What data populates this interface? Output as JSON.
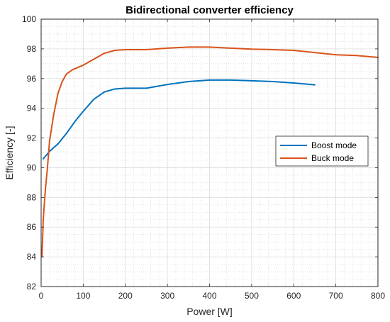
{
  "chart_data": {
    "type": "line",
    "title": "Bidirectional converter efficiency",
    "xlabel": "Power [W]",
    "ylabel": "Efficiency [-]",
    "xlim": [
      0,
      800
    ],
    "ylim": [
      82,
      100
    ],
    "xticks": [
      0,
      100,
      200,
      300,
      400,
      500,
      600,
      700,
      800
    ],
    "yticks": [
      82,
      84,
      86,
      88,
      90,
      92,
      94,
      96,
      98,
      100
    ],
    "grid": true,
    "minor_grid": true,
    "legend_position": "right",
    "series": [
      {
        "name": "Boost mode",
        "color": "#0072BD",
        "points": [
          [
            5,
            90.6
          ],
          [
            20,
            91.1
          ],
          [
            40,
            91.6
          ],
          [
            60,
            92.3
          ],
          [
            80,
            93.1
          ],
          [
            100,
            93.8
          ],
          [
            125,
            94.6
          ],
          [
            150,
            95.1
          ],
          [
            175,
            95.3
          ],
          [
            200,
            95.35
          ],
          [
            250,
            95.35
          ],
          [
            300,
            95.6
          ],
          [
            350,
            95.8
          ],
          [
            400,
            95.9
          ],
          [
            450,
            95.9
          ],
          [
            500,
            95.85
          ],
          [
            550,
            95.8
          ],
          [
            600,
            95.7
          ],
          [
            650,
            95.58
          ]
        ]
      },
      {
        "name": "Buck mode",
        "color": "#D95319",
        "points": [
          [
            2,
            84.0
          ],
          [
            5,
            86.5
          ],
          [
            10,
            88.5
          ],
          [
            15,
            90.0
          ],
          [
            20,
            91.8
          ],
          [
            30,
            93.6
          ],
          [
            40,
            95.0
          ],
          [
            50,
            95.8
          ],
          [
            60,
            96.3
          ],
          [
            75,
            96.6
          ],
          [
            100,
            96.9
          ],
          [
            125,
            97.3
          ],
          [
            150,
            97.7
          ],
          [
            175,
            97.9
          ],
          [
            200,
            97.95
          ],
          [
            250,
            97.95
          ],
          [
            300,
            98.05
          ],
          [
            350,
            98.12
          ],
          [
            400,
            98.12
          ],
          [
            450,
            98.05
          ],
          [
            500,
            97.98
          ],
          [
            550,
            97.95
          ],
          [
            600,
            97.9
          ],
          [
            650,
            97.75
          ],
          [
            700,
            97.6
          ],
          [
            750,
            97.55
          ],
          [
            800,
            97.42
          ]
        ]
      }
    ]
  }
}
